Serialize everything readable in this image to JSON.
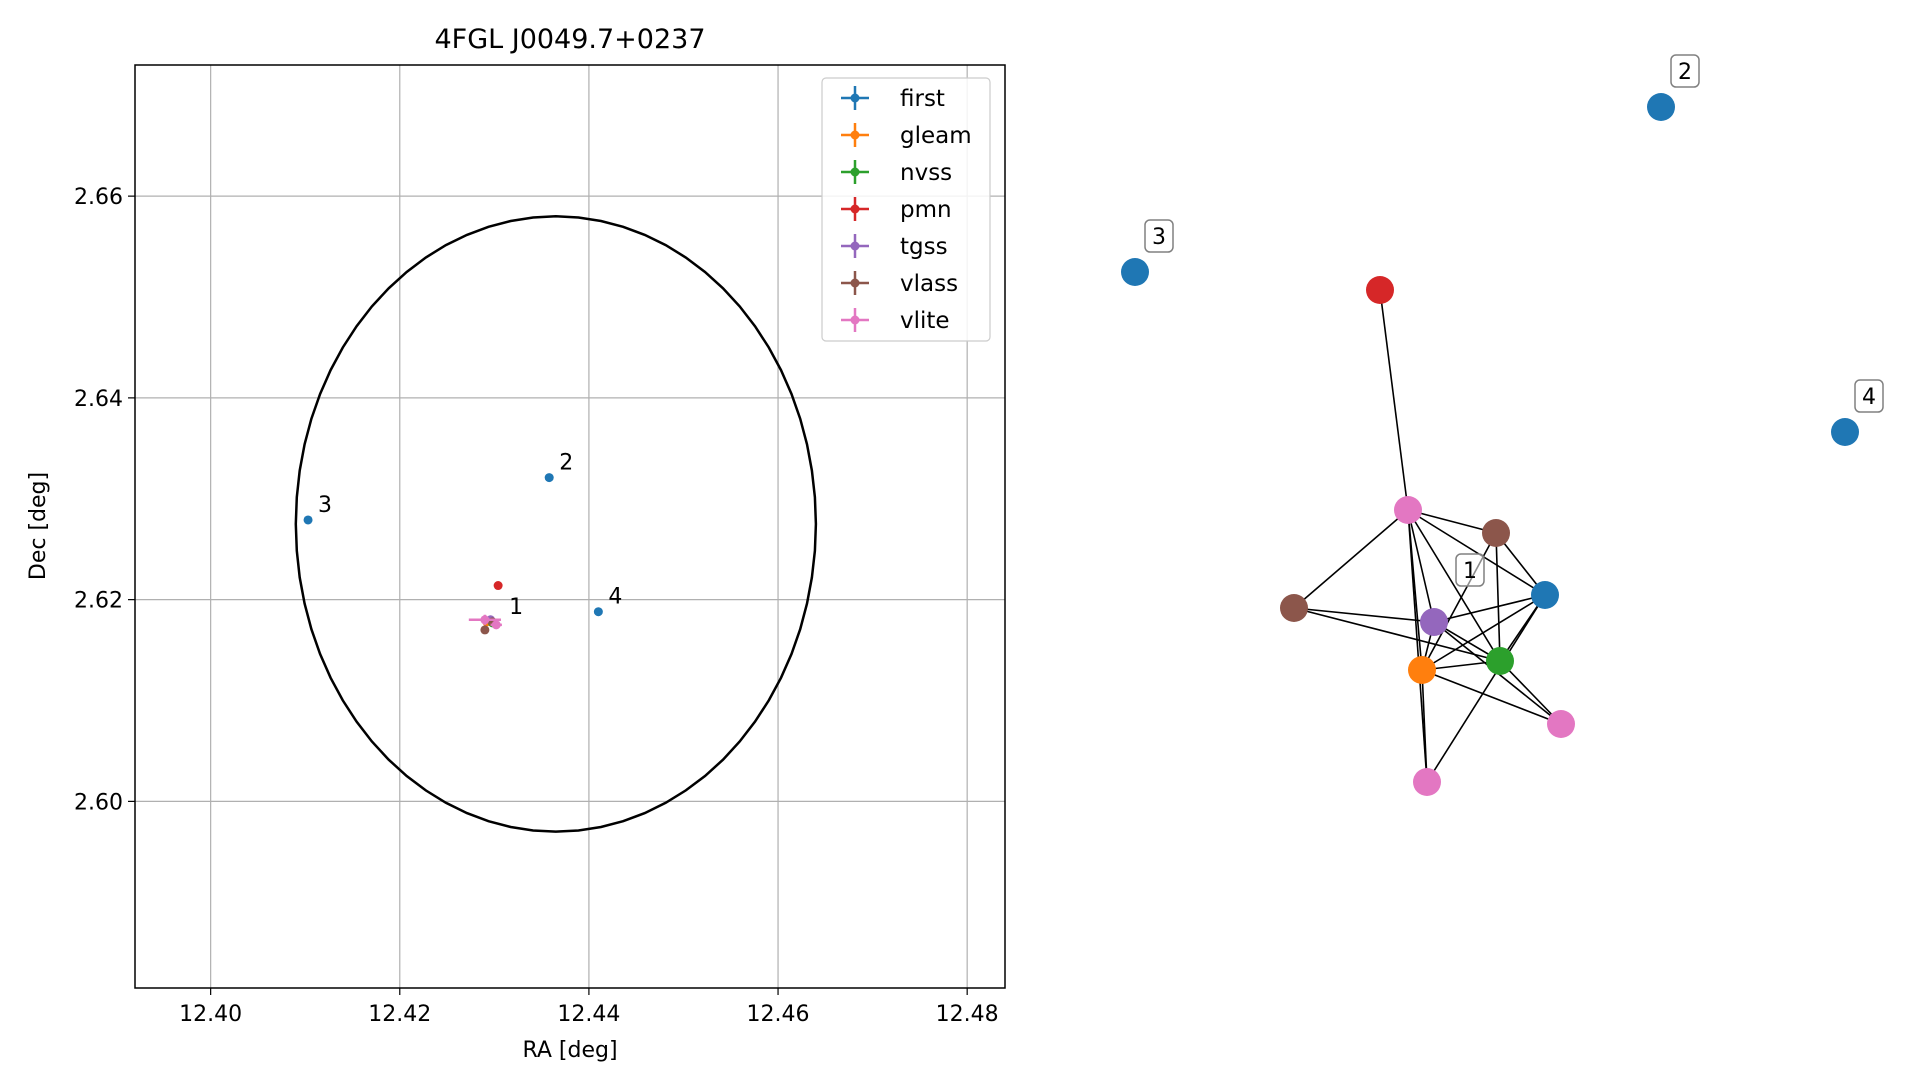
{
  "chart_data": [
    {
      "type": "scatter",
      "title": "4FGL J0049.7+0237",
      "xlabel": "RA [deg]",
      "ylabel": "Dec [deg]",
      "xlim": [
        12.392,
        12.484
      ],
      "ylim": [
        2.5815,
        2.673
      ],
      "xticks": [
        12.4,
        12.42,
        12.44,
        12.46,
        12.48
      ],
      "xtick_labels": [
        "12.40",
        "12.42",
        "12.44",
        "12.46",
        "12.48"
      ],
      "yticks": [
        2.6,
        2.62,
        2.64,
        2.66
      ],
      "ytick_labels": [
        "2.60",
        "2.62",
        "2.64",
        "2.66"
      ],
      "grid": true,
      "legend_position": "top-right",
      "ellipse": {
        "center": [
          12.4365,
          2.6275
        ],
        "ra_half_width": 0.0275,
        "dec_half_height": 0.0305,
        "color": "#000000"
      },
      "series": [
        {
          "name": "first",
          "color": "#1f77b4",
          "points": [
            [
              12.4358,
              2.6321
            ],
            [
              12.4103,
              2.6279
            ],
            [
              12.441,
              2.6188
            ]
          ],
          "xerr": [
            0,
            0,
            0
          ],
          "yerr": [
            0,
            0,
            0
          ]
        },
        {
          "name": "gleam",
          "color": "#ff7f0e",
          "points": [
            [
              12.4292,
              2.6178
            ]
          ],
          "xerr": [
            0.0003
          ],
          "yerr": [
            0.0001
          ]
        },
        {
          "name": "nvss",
          "color": "#2ca02c",
          "points": [
            [
              12.4298,
              2.6177
            ]
          ],
          "xerr": [
            0.0002
          ],
          "yerr": [
            0.0002
          ]
        },
        {
          "name": "pmn",
          "color": "#d62728",
          "points": [
            [
              12.4304,
              2.6214
            ]
          ],
          "xerr": [
            0
          ],
          "yerr": [
            0
          ]
        },
        {
          "name": "tgss",
          "color": "#9467bd",
          "points": [
            [
              12.4296,
              2.618
            ]
          ],
          "xerr": [
            0.0002
          ],
          "yerr": [
            0.0002
          ]
        },
        {
          "name": "vlass",
          "color": "#8c564b",
          "points": [
            [
              12.429,
              2.617
            ],
            [
              12.4298,
              2.6178
            ]
          ],
          "xerr": [
            0,
            0
          ],
          "yerr": [
            0,
            0
          ]
        },
        {
          "name": "vlite",
          "color": "#e377c2",
          "points": [
            [
              12.429,
              2.618
            ],
            [
              12.4302,
              2.6175
            ]
          ],
          "xerr": [
            0.0017,
            0.0006
          ],
          "yerr": [
            0.0005,
            0.0004
          ]
        }
      ],
      "annotations": [
        {
          "text": "1",
          "x": 12.4305,
          "y": 2.6178
        },
        {
          "text": "2",
          "x": 12.4358,
          "y": 2.6321
        },
        {
          "text": "3",
          "x": 12.4103,
          "y": 2.6279
        },
        {
          "text": "4",
          "x": 12.441,
          "y": 2.6188
        }
      ]
    },
    {
      "type": "network",
      "node_colors": {
        "first": "#1f77b4",
        "gleam": "#ff7f0e",
        "nvss": "#2ca02c",
        "pmn": "#d62728",
        "tgss": "#9467bd",
        "vlass": "#8c564b",
        "vlite": "#e377c2"
      },
      "nodes": [
        {
          "id": "c2",
          "series": "first",
          "label": "2"
        },
        {
          "id": "c3",
          "series": "first",
          "label": "3"
        },
        {
          "id": "c4",
          "series": "first",
          "label": "4"
        },
        {
          "id": "pmn",
          "series": "pmn",
          "label": ""
        },
        {
          "id": "vlite_a",
          "series": "vlite",
          "label": ""
        },
        {
          "id": "vlass_a",
          "series": "vlass",
          "label": ""
        },
        {
          "id": "vlass_b",
          "series": "vlass",
          "label": ""
        },
        {
          "id": "c1",
          "series": "first",
          "label": ""
        },
        {
          "id": "tgss",
          "series": "tgss",
          "label": ""
        },
        {
          "id": "nvss",
          "series": "nvss",
          "label": ""
        },
        {
          "id": "gleam",
          "series": "gleam",
          "label": ""
        },
        {
          "id": "vlite_b",
          "series": "vlite",
          "label": ""
        },
        {
          "id": "vlite_c",
          "series": "vlite",
          "label": ""
        }
      ],
      "cluster_label": "1",
      "edges": [
        [
          "pmn",
          "vlite_a"
        ],
        [
          "vlite_a",
          "vlass_b"
        ],
        [
          "vlite_a",
          "c1"
        ],
        [
          "vlite_a",
          "vlass_a"
        ],
        [
          "vlite_a",
          "tgss"
        ],
        [
          "vlite_a",
          "nvss"
        ],
        [
          "vlite_a",
          "gleam"
        ],
        [
          "vlite_a",
          "vlite_c"
        ],
        [
          "vlass_b",
          "c1"
        ],
        [
          "vlass_b",
          "nvss"
        ],
        [
          "vlass_b",
          "gleam"
        ],
        [
          "vlass_a",
          "tgss"
        ],
        [
          "vlass_a",
          "nvss"
        ],
        [
          "c1",
          "tgss"
        ],
        [
          "c1",
          "gleam"
        ],
        [
          "c1",
          "nvss"
        ],
        [
          "c1",
          "vlite_c"
        ],
        [
          "tgss",
          "nvss"
        ],
        [
          "tgss",
          "gleam"
        ],
        [
          "tgss",
          "vlite_b"
        ],
        [
          "gleam",
          "nvss"
        ],
        [
          "gleam",
          "vlite_b"
        ],
        [
          "gleam",
          "vlite_c"
        ],
        [
          "nvss",
          "vlite_b"
        ]
      ]
    }
  ]
}
